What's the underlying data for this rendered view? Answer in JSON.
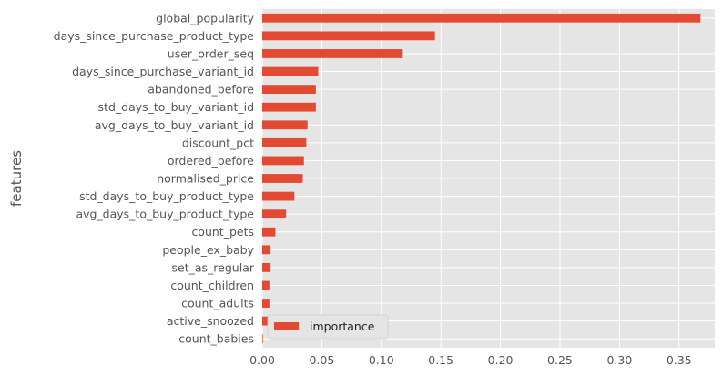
{
  "chart_data": {
    "type": "bar",
    "orientation": "horizontal",
    "categories": [
      "global_popularity",
      "days_since_purchase_product_type",
      "user_order_seq",
      "days_since_purchase_variant_id",
      "abandoned_before",
      "std_days_to_buy_variant_id",
      "avg_days_to_buy_variant_id",
      "discount_pct",
      "ordered_before",
      "normalised_price",
      "std_days_to_buy_product_type",
      "avg_days_to_buy_product_type",
      "count_pets",
      "people_ex_baby",
      "set_as_regular",
      "count_children",
      "count_adults",
      "active_snoozed",
      "count_babies"
    ],
    "series": [
      {
        "name": "importance",
        "color": "#E24A33",
        "values": [
          0.368,
          0.145,
          0.118,
          0.047,
          0.045,
          0.045,
          0.038,
          0.037,
          0.035,
          0.034,
          0.027,
          0.02,
          0.011,
          0.007,
          0.007,
          0.006,
          0.006,
          0.005,
          0.0005
        ]
      }
    ],
    "xlim": [
      0,
      0.38
    ],
    "xticks": [
      "0.00",
      "0.05",
      "0.10",
      "0.15",
      "0.20",
      "0.25",
      "0.30",
      "0.35"
    ],
    "xtick_values": [
      0,
      0.05,
      0.1,
      0.15,
      0.2,
      0.25,
      0.3,
      0.35
    ],
    "xlabel": "",
    "ylabel": "features",
    "grid": true,
    "legend_position": "lower-left",
    "style": "ggplot"
  },
  "colors": {
    "plot_background": "#E5E5E5",
    "grid": "#FFFFFF",
    "bar": "#E24A33",
    "tick_text": "#555555"
  }
}
